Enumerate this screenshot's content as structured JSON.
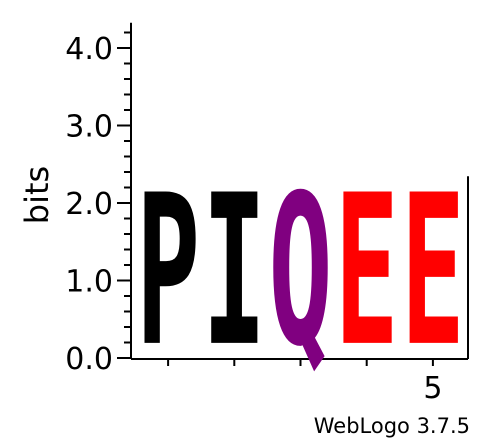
{
  "chart_data": {
    "type": "sequence-logo",
    "ylabel": "bits",
    "ylim": [
      0,
      4.3
    ],
    "y_ticks": [
      {
        "value": 0,
        "label": "0.0"
      },
      {
        "value": 1,
        "label": "1.0"
      },
      {
        "value": 2,
        "label": "2.0"
      },
      {
        "value": 3,
        "label": "3.0"
      },
      {
        "value": 4,
        "label": "4.0"
      }
    ],
    "positions": [
      1,
      2,
      3,
      4,
      5
    ],
    "x_tick_labels": [
      {
        "position": 5,
        "label": "5"
      }
    ],
    "stacks": [
      {
        "position": 1,
        "letters": [
          {
            "char": "P",
            "height": 2.32,
            "color": "#000000"
          }
        ]
      },
      {
        "position": 2,
        "letters": [
          {
            "char": "I",
            "height": 2.32,
            "color": "#000000"
          }
        ]
      },
      {
        "position": 3,
        "letters": [
          {
            "char": "Q",
            "height": 2.32,
            "color": "#800080"
          }
        ]
      },
      {
        "position": 4,
        "letters": [
          {
            "char": "E",
            "height": 2.32,
            "color": "#FF0000"
          }
        ]
      },
      {
        "position": 5,
        "letters": [
          {
            "char": "E",
            "height": 2.32,
            "color": "#FF0000"
          }
        ]
      }
    ],
    "credit": "WebLogo 3.7.5"
  }
}
